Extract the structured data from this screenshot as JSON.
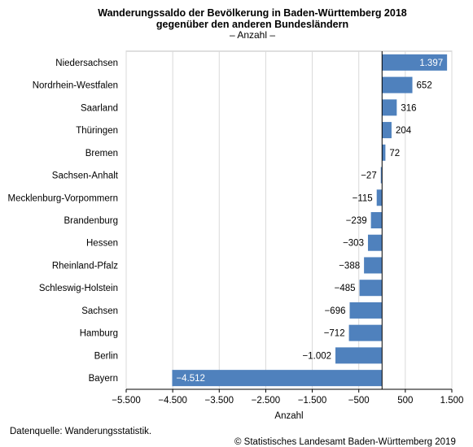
{
  "header": {
    "title_line1": "Wanderungssaldo der Bevölkerung in Baden-Württemberg 2018",
    "title_line2": "gegenüber den anderen Bundesländern",
    "subtitle": "– Anzahl –"
  },
  "footer": {
    "source": "Datenquelle: Wanderungsstatistik.",
    "copyright": "© Statistisches Landesamt Baden-Württemberg 2019"
  },
  "colors": {
    "bar": "#4f81bd",
    "grid": "#d9d9d9",
    "zero_line": "#000000"
  },
  "chart_data": {
    "type": "bar",
    "orientation": "horizontal",
    "categories": [
      "Niedersachsen",
      "Nordrhein-Westfalen",
      "Saarland",
      "Thüringen",
      "Bremen",
      "Sachsen-Anhalt",
      "Mecklenburg-Vorpommern",
      "Brandenburg",
      "Hessen",
      "Rheinland-Pfalz",
      "Schleswig-Holstein",
      "Sachsen",
      "Hamburg",
      "Berlin",
      "Bayern"
    ],
    "values": [
      1397,
      652,
      316,
      204,
      72,
      -27,
      -115,
      -239,
      -303,
      -388,
      -485,
      -696,
      -712,
      -1002,
      -4512
    ],
    "value_labels": [
      "1.397",
      "652",
      "316",
      "204",
      "72",
      "−27",
      "−115",
      "−239",
      "−303",
      "−388",
      "−485",
      "−696",
      "−712",
      "−1.002",
      "−4.512"
    ],
    "xlabel": "Anzahl",
    "xlim": [
      -5500,
      1500
    ],
    "xticks": [
      -5500,
      -4500,
      -3500,
      -2500,
      -1500,
      -500,
      500,
      1500
    ],
    "xtick_labels": [
      "−5.500",
      "−4.500",
      "−3.500",
      "−2.500",
      "−1.500",
      "−500",
      "500",
      "1.500"
    ],
    "grid": true
  }
}
